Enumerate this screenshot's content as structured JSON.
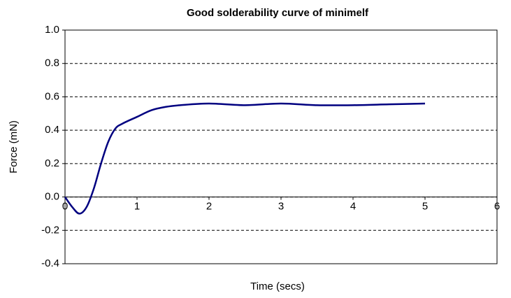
{
  "chart_data": {
    "type": "line",
    "title": "Good solderability curve of minimelf",
    "x_label": "Time (secs)",
    "y_label": "Force (mN)",
    "xlim": [
      0,
      6
    ],
    "xticks": [
      0,
      1,
      2,
      3,
      4,
      5,
      6
    ],
    "ylim": [
      -0.4,
      1.0
    ],
    "yticks": [
      {
        "value": -0.4,
        "label": "-0.4"
      },
      {
        "value": -0.2,
        "label": "-0.2"
      },
      {
        "value": 0,
        "label": "0.0"
      },
      {
        "value": 0.2,
        "label": "0.2"
      },
      {
        "value": 0.4,
        "label": "0.4"
      },
      {
        "value": 0.6,
        "label": "0.6"
      },
      {
        "value": 0.8,
        "label": "0.8"
      },
      {
        "value": 1.0,
        "label": "1.0"
      }
    ],
    "grid": true,
    "series": [
      {
        "color": "#000080",
        "x": [
          0,
          0.1,
          0.2,
          0.3,
          0.4,
          0.5,
          0.6,
          0.7,
          0.8,
          1.0,
          1.2,
          1.4,
          1.6,
          2.0,
          2.5,
          3.0,
          3.5,
          4.0,
          4.5,
          5.0
        ],
        "values": [
          0,
          -0.06,
          -0.1,
          -0.06,
          0.05,
          0.2,
          0.33,
          0.41,
          0.44,
          0.48,
          0.52,
          0.54,
          0.55,
          0.56,
          0.55,
          0.56,
          0.55,
          0.55,
          0.555,
          0.56
        ]
      }
    ]
  }
}
